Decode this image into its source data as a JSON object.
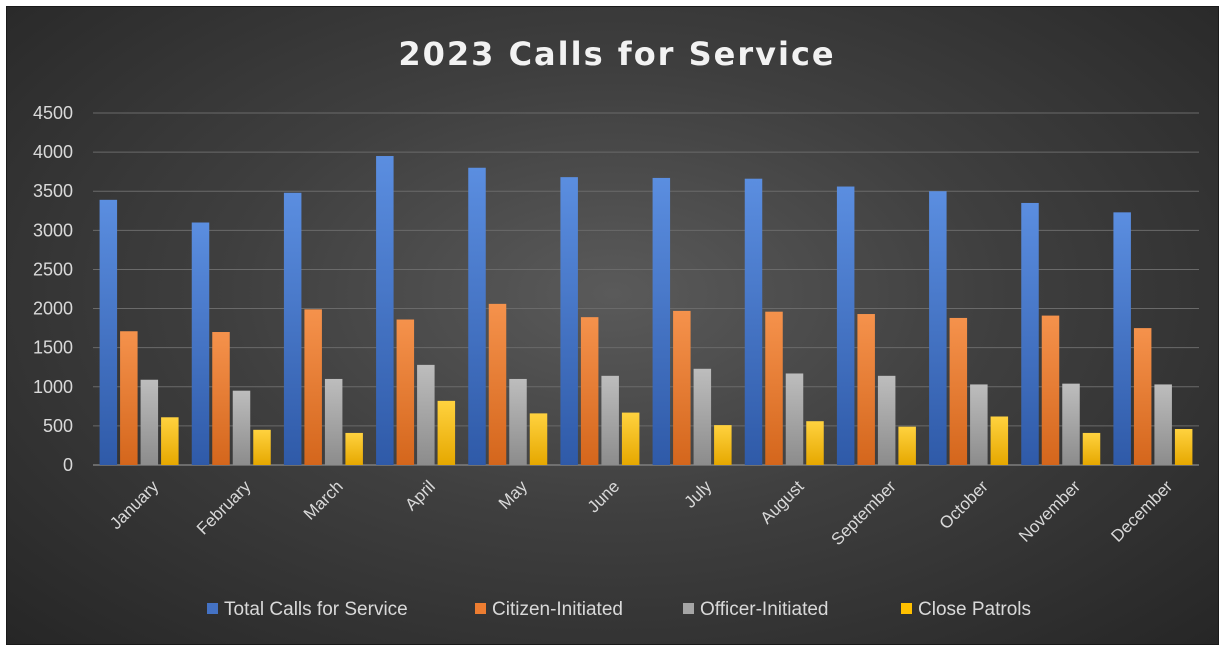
{
  "chart_data": {
    "type": "bar",
    "title": "2023 Calls for Service",
    "xlabel": "",
    "ylabel": "",
    "ylim": [
      0,
      4500
    ],
    "yticks": [
      0,
      500,
      1000,
      1500,
      2000,
      2500,
      3000,
      3500,
      4000,
      4500
    ],
    "grid": true,
    "legend_position": "bottom",
    "categories": [
      "January",
      "February",
      "March",
      "April",
      "May",
      "June",
      "July",
      "August",
      "September",
      "October",
      "November",
      "December"
    ],
    "series": [
      {
        "name": "Total Calls for Service",
        "color": "#4472C4",
        "values": [
          3390,
          3100,
          3480,
          3950,
          3800,
          3680,
          3670,
          3660,
          3560,
          3500,
          3350,
          3230
        ]
      },
      {
        "name": "Citizen-Initiated",
        "color": "#ED7D31",
        "values": [
          1710,
          1700,
          1990,
          1860,
          2060,
          1890,
          1970,
          1960,
          1930,
          1880,
          1910,
          1750
        ]
      },
      {
        "name": "Officer-Initiated",
        "color": "#A5A5A5",
        "values": [
          1090,
          950,
          1100,
          1280,
          1100,
          1140,
          1230,
          1170,
          1140,
          1030,
          1040,
          1030
        ]
      },
      {
        "name": "Close Patrols",
        "color": "#FFC000",
        "values": [
          610,
          450,
          410,
          820,
          660,
          670,
          510,
          560,
          490,
          620,
          410,
          460
        ]
      }
    ]
  }
}
